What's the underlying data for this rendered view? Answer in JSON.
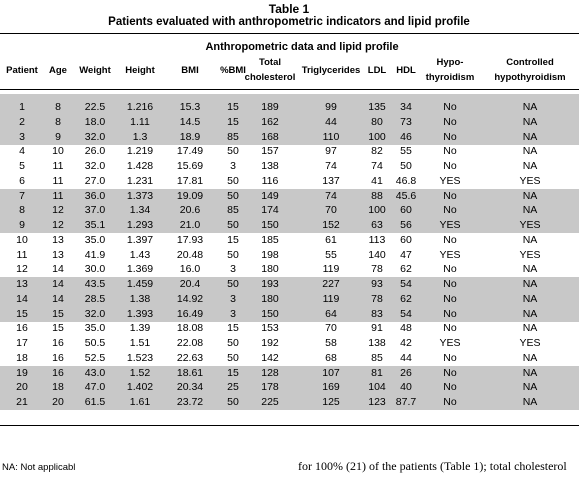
{
  "title": "Table 1",
  "subtitle": "Patients evaluated with anthropometric indicators and lipid profile",
  "group_header": "Anthropometric data and lipid profile",
  "columns": [
    [
      "Patient"
    ],
    [
      "Age"
    ],
    [
      "Weight"
    ],
    [
      "Height"
    ],
    [
      "BMI"
    ],
    [
      "%BMI"
    ],
    [
      "Total",
      "cholesterol"
    ],
    [
      "Triglycerides"
    ],
    [
      "LDL"
    ],
    [
      "HDL"
    ],
    [
      "Hypo-",
      "thyroidism"
    ],
    [
      "Controlled",
      "hypothyroidism"
    ]
  ],
  "rows": [
    [
      "1",
      "8",
      "22.5",
      "1.216",
      "15.3",
      "15",
      "189",
      "99",
      "135",
      "34",
      "No",
      "NA"
    ],
    [
      "2",
      "8",
      "18.0",
      "1.11",
      "14.5",
      "15",
      "162",
      "44",
      "80",
      "73",
      "No",
      "NA"
    ],
    [
      "3",
      "9",
      "32.0",
      "1.3",
      "18.9",
      "85",
      "168",
      "110",
      "100",
      "46",
      "No",
      "NA"
    ],
    [
      "4",
      "10",
      "26.0",
      "1.219",
      "17.49",
      "50",
      "157",
      "97",
      "82",
      "55",
      "No",
      "NA"
    ],
    [
      "5",
      "11",
      "32.0",
      "1.428",
      "15.69",
      "3",
      "138",
      "74",
      "74",
      "50",
      "No",
      "NA"
    ],
    [
      "6",
      "11",
      "27.0",
      "1.231",
      "17.81",
      "50",
      "116",
      "137",
      "41",
      "46.8",
      "YES",
      "YES"
    ],
    [
      "7",
      "11",
      "36.0",
      "1.373",
      "19.09",
      "50",
      "149",
      "74",
      "88",
      "45.6",
      "No",
      "NA"
    ],
    [
      "8",
      "12",
      "37.0",
      "1.34",
      "20.6",
      "85",
      "174",
      "70",
      "100",
      "60",
      "No",
      "NA"
    ],
    [
      "9",
      "12",
      "35.1",
      "1.293",
      "21.0",
      "50",
      "150",
      "152",
      "63",
      "56",
      "YES",
      "YES"
    ],
    [
      "10",
      "13",
      "35.0",
      "1.397",
      "17.93",
      "15",
      "185",
      "61",
      "113",
      "60",
      "No",
      "NA"
    ],
    [
      "11",
      "13",
      "41.9",
      "1.43",
      "20.48",
      "50",
      "198",
      "55",
      "140",
      "47",
      "YES",
      "YES"
    ],
    [
      "12",
      "14",
      "30.0",
      "1.369",
      "16.0",
      "3",
      "180",
      "119",
      "78",
      "62",
      "No",
      "NA"
    ],
    [
      "13",
      "14",
      "43.5",
      "1.459",
      "20.4",
      "50",
      "193",
      "227",
      "93",
      "54",
      "No",
      "NA"
    ],
    [
      "14",
      "14",
      "28.5",
      "1.38",
      "14.92",
      "3",
      "180",
      "119",
      "78",
      "62",
      "No",
      "NA"
    ],
    [
      "15",
      "15",
      "32.0",
      "1.393",
      "16.49",
      "3",
      "150",
      "64",
      "83",
      "54",
      "No",
      "NA"
    ],
    [
      "16",
      "15",
      "35.0",
      "1.39",
      "18.08",
      "15",
      "153",
      "70",
      "91",
      "48",
      "No",
      "NA"
    ],
    [
      "17",
      "16",
      "50.5",
      "1.51",
      "22.08",
      "50",
      "192",
      "58",
      "138",
      "42",
      "YES",
      "YES"
    ],
    [
      "18",
      "16",
      "52.5",
      "1.523",
      "22.63",
      "50",
      "142",
      "68",
      "85",
      "44",
      "No",
      "NA"
    ],
    [
      "19",
      "16",
      "43.0",
      "1.52",
      "18.61",
      "15",
      "128",
      "107",
      "81",
      "26",
      "No",
      "NA"
    ],
    [
      "20",
      "18",
      "47.0",
      "1.402",
      "20.34",
      "25",
      "178",
      "169",
      "104",
      "40",
      "No",
      "NA"
    ],
    [
      "21",
      "20",
      "61.5",
      "1.61",
      "23.72",
      "50",
      "225",
      "125",
      "123",
      "87.7",
      "No",
      "NA"
    ]
  ],
  "footnote": "NA: Not applicabl",
  "continuation": "for 100% (21) of the patients (Table 1); total cholesterol"
}
